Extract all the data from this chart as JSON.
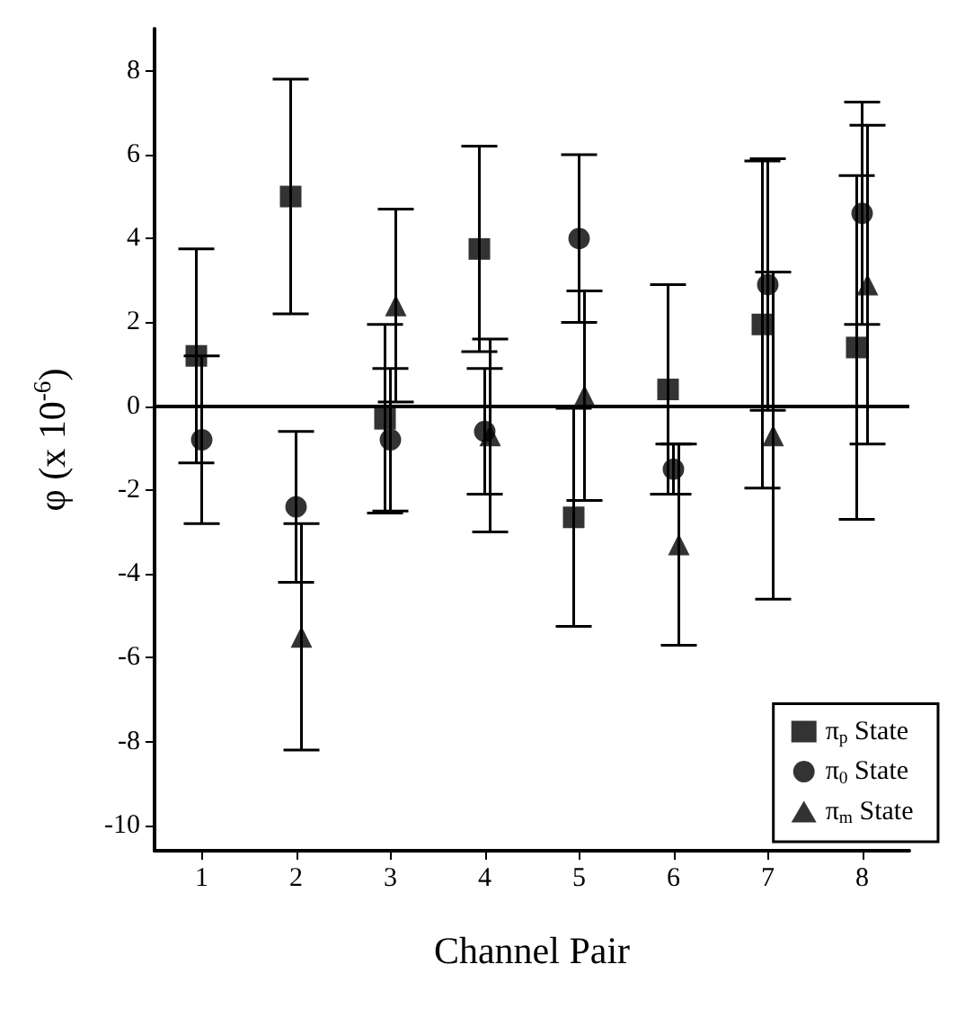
{
  "chart_data": {
    "type": "scatter",
    "xlabel": "Channel Pair",
    "ylabel": "φ (x 10$^{-6}$)",
    "categories": [
      "1",
      "2",
      "3",
      "4",
      "5",
      "6",
      "7",
      "8"
    ],
    "series": [
      {
        "name": "π$_{p}$ State",
        "color": "#000000",
        "marker": "square",
        "values": [
          1.2,
          5.0,
          -0.3,
          3.75,
          -2.65,
          0.4,
          1.95,
          1.4
        ],
        "errors": [
          2.55,
          2.8,
          2.25,
          2.45,
          2.6,
          2.5,
          3.9,
          4.1
        ]
      },
      {
        "name": "π$_{0}$ State",
        "color": "#000000",
        "marker": "circle",
        "values": [
          -0.8,
          -2.4,
          -0.8,
          -0.6,
          4.0,
          -1.5,
          2.9,
          4.6
        ],
        "errors": [
          2.0,
          1.8,
          1.7,
          1.5,
          2.0,
          0.6,
          3.0,
          2.65
        ]
      },
      {
        "name": "π$_{m}$ State",
        "color": "#000000",
        "marker": "triangle",
        "values": [
          null,
          -5.5,
          2.4,
          -0.7,
          0.25,
          -3.3,
          -0.7,
          2.9
        ],
        "errors": [
          null,
          2.7,
          2.3,
          2.3,
          2.5,
          2.4,
          3.9,
          3.8
        ]
      }
    ],
    "ylim": [
      -10.6,
      9
    ],
    "yticks": [
      -10,
      -8,
      -6,
      -4,
      -2,
      0,
      2,
      4,
      6,
      8
    ],
    "ref_lines": [
      {
        "axis": "y",
        "value": 0,
        "color": "#000000",
        "line_style": "solid"
      }
    ],
    "grid": false,
    "legend": "bottom right"
  }
}
